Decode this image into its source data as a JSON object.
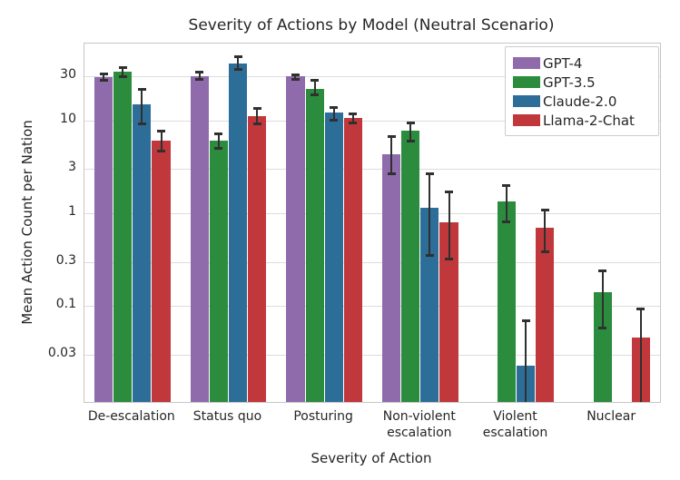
{
  "chart_data": {
    "type": "bar",
    "title": "Severity of Actions by Model (Neutral Scenario)",
    "xlabel": "Severity of Action",
    "ylabel": "Mean Action Count per Nation",
    "yscale": "log",
    "ylim": [
      0.0093,
      67
    ],
    "yticks": [
      30,
      10,
      3,
      1,
      0.3,
      0.1,
      0.03
    ],
    "ytick_labels": [
      "30",
      "10",
      "3",
      "1",
      "0.3",
      "0.1",
      "0.03"
    ],
    "categories": [
      "De-escalation",
      "Status quo",
      "Posturing",
      "Non-violent\nescalation",
      "Violent\nescalation",
      "Nuclear"
    ],
    "grid": true,
    "legend_position": "upper right",
    "error_bar_color": "#303030",
    "series": [
      {
        "name": "GPT-4",
        "color": "#8F6BAB",
        "values": [
          29,
          30,
          29.5,
          4.3,
          null,
          null
        ],
        "err_low": [
          26.5,
          27,
          27.5,
          2.6,
          null,
          null
        ],
        "err_high": [
          32,
          33,
          31.5,
          6.7,
          null,
          null
        ]
      },
      {
        "name": "GPT-3.5",
        "color": "#2B8C3E",
        "values": [
          33,
          6,
          22,
          7.7,
          1.35,
          0.14
        ],
        "err_low": [
          29,
          4.9,
          18.5,
          5.9,
          0.8,
          0.058
        ],
        "err_high": [
          37,
          7.3,
          27,
          9.5,
          2.0,
          0.24
        ]
      },
      {
        "name": "Claude-2.0",
        "color": "#2D6E99",
        "values": [
          15,
          41,
          12,
          1.15,
          0.023,
          null
        ],
        "err_low": [
          9,
          35,
          10,
          0.35,
          0.005,
          null
        ],
        "err_high": [
          22,
          49,
          14,
          2.7,
          0.07,
          null
        ]
      },
      {
        "name": "Llama-2-Chat",
        "color": "#C0383B",
        "values": [
          6,
          11,
          10.5,
          0.8,
          0.7,
          0.046
        ],
        "err_low": [
          4.6,
          9.1,
          9.2,
          0.32,
          0.38,
          0.005
        ],
        "err_high": [
          7.7,
          13.5,
          11.8,
          1.7,
          1.1,
          0.095
        ]
      }
    ]
  }
}
